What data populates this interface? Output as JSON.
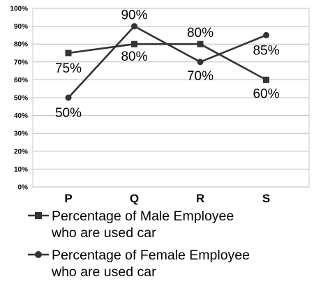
{
  "chart_data": {
    "type": "line",
    "categories": [
      "P",
      "Q",
      "R",
      "S"
    ],
    "y_ticks": [
      "0%",
      "10%",
      "20%",
      "30%",
      "40%",
      "50%",
      "60%",
      "70%",
      "80%",
      "90%",
      "100%"
    ],
    "ylim": [
      0,
      100
    ],
    "grid": true,
    "legend_position": "bottom",
    "series": [
      {
        "key": "male",
        "name": "Percentage of Male Employee who are used car",
        "name_lines": [
          "Percentage of Male  Employee",
          "who are used car"
        ],
        "marker": "square",
        "color": "#333333",
        "values": [
          75,
          80,
          80,
          60
        ],
        "data_labels": [
          "75%",
          "80%",
          "80%",
          "60%"
        ]
      },
      {
        "key": "female",
        "name": "Percentage of Female Employee who are used car",
        "name_lines": [
          "Percentage of Female Employee",
          "who are used car"
        ],
        "marker": "circle",
        "color": "#333333",
        "values": [
          50,
          90,
          70,
          85
        ],
        "data_labels": [
          "50%",
          "90%",
          "70%",
          "85%"
        ]
      }
    ]
  }
}
